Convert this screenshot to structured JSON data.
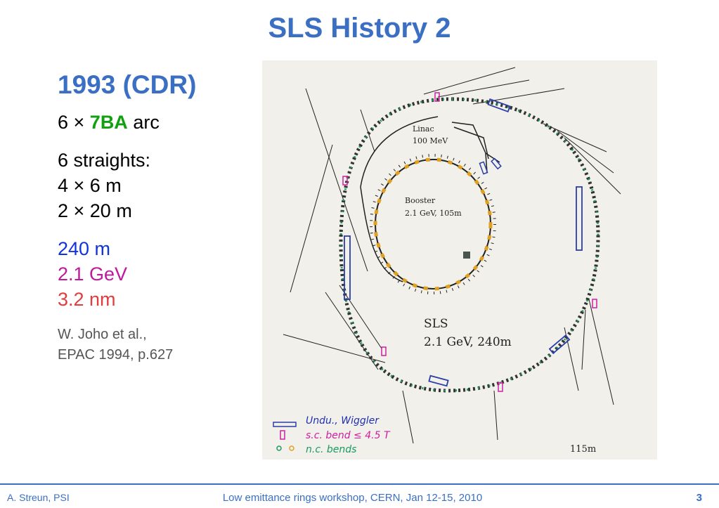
{
  "slide": {
    "title": "SLS History 2",
    "subtitle": "1993 (CDR)",
    "arc_prefix": "6 × ",
    "arc_key": "7BA",
    "arc_suffix": " arc",
    "straights_label": "6 straights:",
    "straights": [
      "4 × 6 m",
      "2 × 20 m"
    ],
    "circumference": "240 m",
    "energy": "2.1 GeV",
    "emittance": "3.2 nm",
    "reference": [
      "W. Joho et al.,",
      "EPAC 1994, p.627"
    ],
    "colors": {
      "title": "#3a6fc4",
      "arc_key": "#10a010",
      "circumference": "#1133dd",
      "energy": "#c0189a",
      "emittance": "#e23c3c"
    }
  },
  "figure": {
    "linac_label": [
      "Linac",
      "100 MeV"
    ],
    "booster_label": [
      "Booster",
      "2.1 GeV, 105m"
    ],
    "sls_label": [
      "SLS",
      "2.1 GeV, 240m"
    ],
    "scale_label": "115m",
    "legend": [
      "Undu., Wiggler",
      "s.c. bend ≤ 4.5 T",
      "n.c. bends"
    ]
  },
  "footer": {
    "author": "A. Streun, PSI",
    "event": "Low emittance rings workshop, CERN, Jan 12-15, 2010",
    "page": "3"
  }
}
